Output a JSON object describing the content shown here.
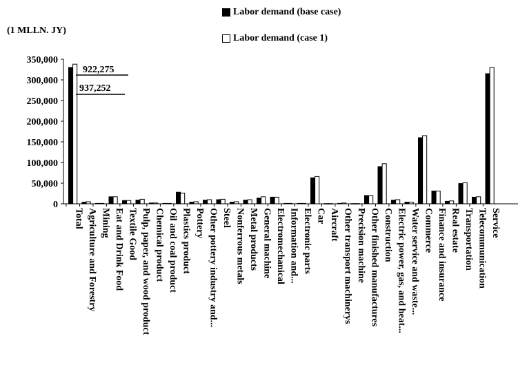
{
  "chart_data": {
    "type": "bar",
    "unit_label": "(1 MLLN. JY)",
    "title": "",
    "xlabel": "",
    "ylabel": "",
    "ylim": [
      0,
      350000
    ],
    "yticks": [
      "0",
      "50,000",
      "100,000",
      "150,000",
      "200,000",
      "250,000",
      "300,000",
      "350,000"
    ],
    "legend_position": "top",
    "annotations": [
      "922,275",
      "937,252"
    ],
    "categories": [
      "Total",
      "Agriculture and Forestry",
      "Mining",
      "Eat and Drink Food",
      "Textile Good",
      "Pulp, paper, and wood product",
      "Chemical product",
      "Oil and coal product",
      "Plastics product",
      "Pottery",
      "Other pottery industry and...",
      "Steel",
      "Nonferrous metals",
      "Metal products",
      "General machine",
      "Electromechanical",
      "Information and...",
      "Electronic parts",
      "Car",
      "Aircraft",
      "Other transport machinerys",
      "Precision machine",
      "Other finished manufactures",
      "Construction",
      "Electric power, gas, and heat...",
      "Water service and waste...",
      "Commerce",
      "Finance and insurance",
      "Real estate",
      "Transportation",
      "Telecommunication",
      "Service"
    ],
    "series": [
      {
        "name": "Labor demand (base case)",
        "color": "#000000",
        "values": [
          330000,
          4000,
          1000,
          17000,
          8000,
          9000,
          2000,
          1000,
          28000,
          4000,
          9000,
          10000,
          4000,
          9000,
          14000,
          16000,
          1000,
          1000,
          63000,
          500,
          1000,
          500,
          20000,
          90000,
          9000,
          4000,
          160000,
          31000,
          6000,
          49000,
          16000,
          315000
        ]
      },
      {
        "name": "Labor demand (case 1)",
        "color": "#ffffff",
        "values": [
          338000,
          5000,
          1000,
          17000,
          8000,
          11000,
          2000,
          1000,
          26000,
          5000,
          10000,
          11000,
          5000,
          10000,
          17000,
          16000,
          1000,
          1000,
          66000,
          500,
          2000,
          500,
          20000,
          97000,
          10000,
          4000,
          165000,
          31000,
          7000,
          51000,
          17000,
          330000
        ]
      }
    ]
  }
}
